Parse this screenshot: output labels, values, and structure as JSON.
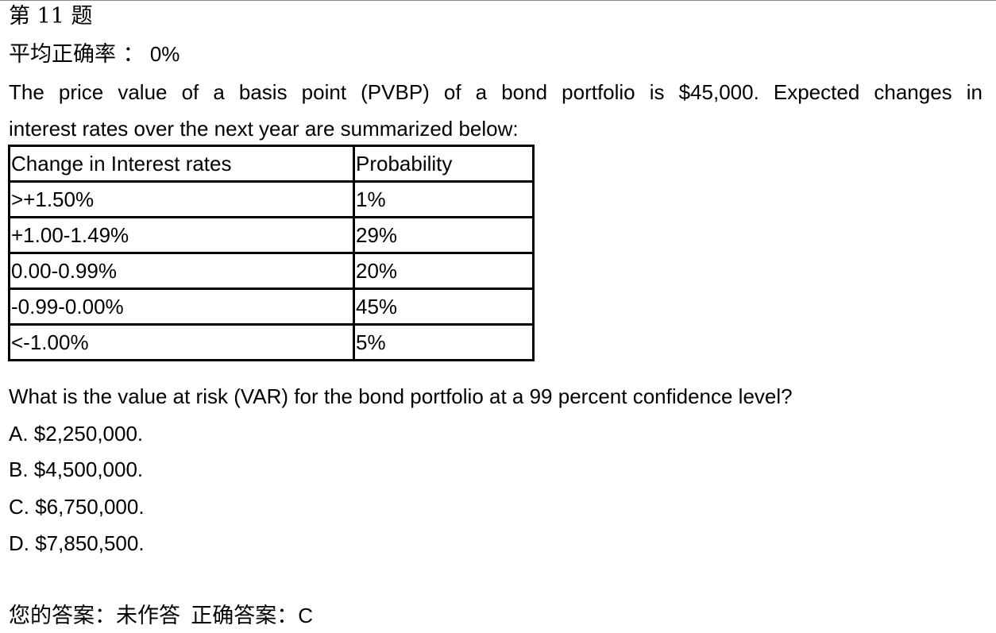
{
  "question": {
    "number_label": "第 11 题",
    "avg_accuracy_label": "平均正确率 ：",
    "avg_accuracy_value": "0%",
    "stem_line1": "The price value of a basis point (PVBP) of a bond portfolio is $45,000. Expected changes in",
    "stem_line2": "interest rates over the next year are summarized below:",
    "table": {
      "headers": [
        "Change in Interest rates",
        "Probability"
      ],
      "rows": [
        [
          ">+1.50%",
          "1%"
        ],
        [
          "+1.00-1.49%",
          "29%"
        ],
        [
          "0.00-0.99%",
          "20%"
        ],
        [
          "-0.99-0.00%",
          "45%"
        ],
        [
          "<-1.00%",
          "5%"
        ]
      ]
    },
    "prompt": "What is the value at risk (VAR) for the bond portfolio at a 99 percent confidence level?",
    "options": [
      "A. $2,250,000.",
      "B. $4,500,000.",
      "C. $6,750,000.",
      "D. $7,850,500."
    ],
    "your_answer_label": "您的答案：",
    "your_answer_value": "未作答",
    "correct_answer_label": "正确答案：",
    "correct_answer_value": "C"
  }
}
